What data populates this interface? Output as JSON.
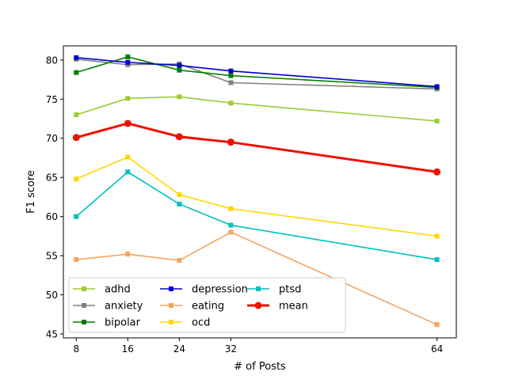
{
  "chart_data": {
    "type": "line",
    "title": "",
    "xlabel": "# of Posts",
    "ylabel": "F1 score",
    "x": [
      8,
      16,
      24,
      32,
      64
    ],
    "xlim": [
      6,
      67
    ],
    "ylim": [
      44.5,
      81.8
    ],
    "xticks": [
      8,
      16,
      24,
      32,
      64
    ],
    "yticks": [
      45,
      50,
      55,
      60,
      65,
      70,
      75,
      80
    ],
    "grid": false,
    "legend_placement": "lower-left",
    "legend_columns": 3,
    "series": [
      {
        "name": "adhd",
        "color": "#9acd32",
        "marker": "square",
        "values": [
          73.0,
          75.1,
          75.3,
          74.5,
          72.2
        ]
      },
      {
        "name": "anxiety",
        "color": "#808080",
        "marker": "square",
        "values": [
          80.1,
          79.4,
          79.5,
          77.1,
          76.3
        ]
      },
      {
        "name": "bipolar",
        "color": "#008000",
        "marker": "square",
        "values": [
          78.4,
          80.4,
          78.7,
          78.0,
          76.5
        ]
      },
      {
        "name": "depression",
        "color": "#0000cd",
        "marker": "square",
        "values": [
          80.3,
          79.7,
          79.3,
          78.6,
          76.6
        ]
      },
      {
        "name": "eating",
        "color": "#f4a460",
        "marker": "square",
        "values": [
          54.5,
          55.2,
          54.4,
          58.0,
          46.2
        ]
      },
      {
        "name": "ocd",
        "color": "#ffd700",
        "marker": "square",
        "values": [
          64.8,
          67.6,
          62.8,
          61.0,
          57.5
        ]
      },
      {
        "name": "ptsd",
        "color": "#00bfbf",
        "marker": "square",
        "values": [
          60.0,
          65.7,
          61.6,
          58.9,
          54.5
        ]
      },
      {
        "name": "mean",
        "color": "#ee1100",
        "marker": "circle",
        "bold": true,
        "values": [
          70.1,
          71.9,
          70.2,
          69.5,
          65.7
        ]
      }
    ]
  }
}
